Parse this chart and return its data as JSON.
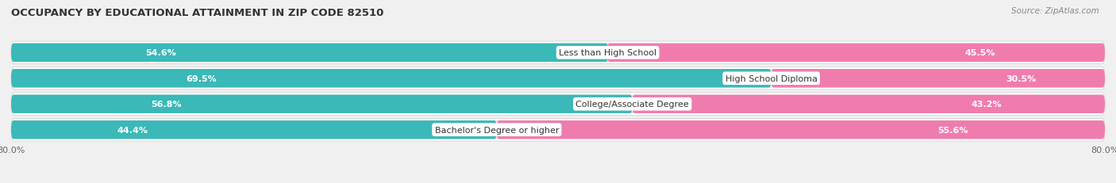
{
  "title": "OCCUPANCY BY EDUCATIONAL ATTAINMENT IN ZIP CODE 82510",
  "source": "Source: ZipAtlas.com",
  "categories": [
    "Less than High School",
    "High School Diploma",
    "College/Associate Degree",
    "Bachelor's Degree or higher"
  ],
  "owner_pct": [
    54.6,
    69.5,
    56.8,
    44.4
  ],
  "renter_pct": [
    45.5,
    30.5,
    43.2,
    55.6
  ],
  "owner_color": "#3BB8B8",
  "renter_color": "#F07CAE",
  "bg_color": "#f0f0f0",
  "row_bg_color": "#ffffff",
  "bar_track_color": "#e0e0e0",
  "axis_min": -80.0,
  "axis_max": 80.0,
  "tick_label": "80.0%"
}
